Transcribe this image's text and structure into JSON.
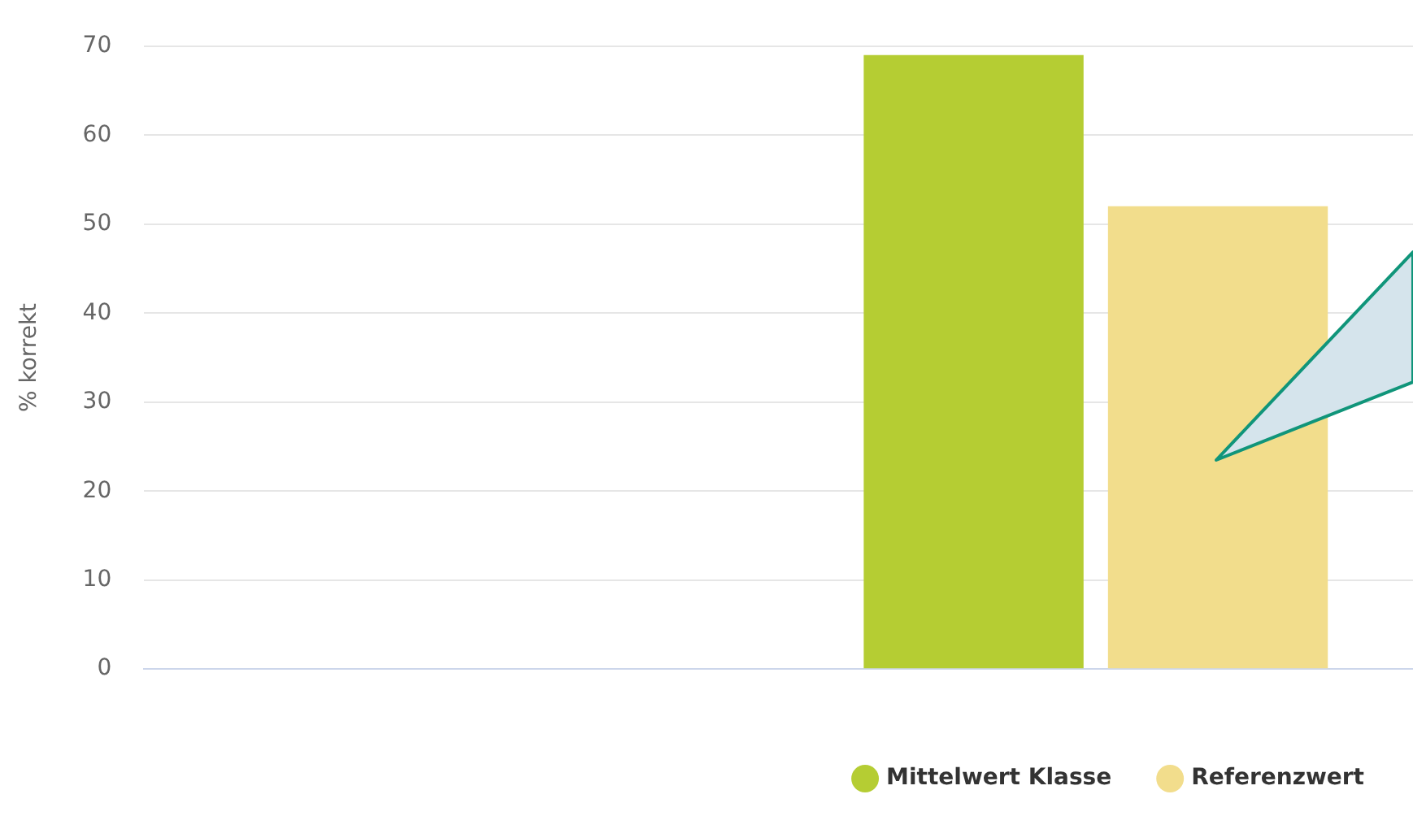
{
  "chart_data": {
    "type": "bar",
    "ylabel": "% korrekt",
    "categories": [
      null,
      null
    ],
    "series": [
      {
        "name": "Mittelwert Klasse",
        "color": "#b5cd33",
        "values": [
          null,
          69
        ]
      },
      {
        "name": "Referenzwert",
        "color": "#f2dd8c",
        "values": [
          null,
          52
        ]
      }
    ],
    "ylim": [
      0,
      70
    ],
    "yticks": [
      0,
      10,
      20,
      30,
      40,
      50,
      60,
      70
    ],
    "grid": "y",
    "legend": "bottom"
  }
}
